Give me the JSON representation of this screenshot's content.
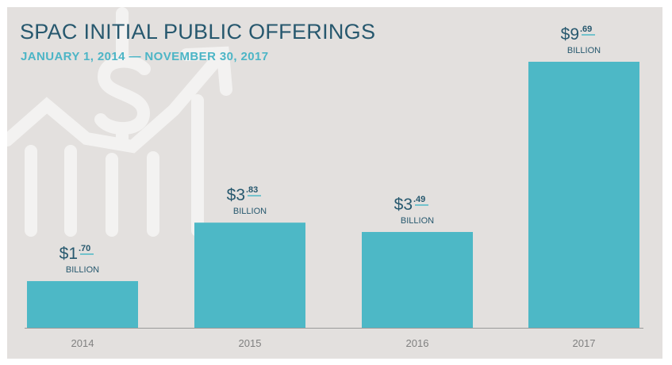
{
  "chart_data": {
    "type": "bar",
    "title": "SPAC INITIAL PUBLIC OFFERINGS",
    "subtitle": "JANUARY 1, 2014 — NOVEMBER 30, 2017",
    "categories": [
      "2014",
      "2015",
      "2016",
      "2017"
    ],
    "values": [
      1.7,
      3.83,
      3.49,
      9.69
    ],
    "value_labels": [
      {
        "dollars": "$1",
        "cents": ".70",
        "unit": "BILLION"
      },
      {
        "dollars": "$3",
        "cents": ".83",
        "unit": "BILLION"
      },
      {
        "dollars": "$3",
        "cents": ".49",
        "unit": "BILLION"
      },
      {
        "dollars": "$9",
        "cents": ".69",
        "unit": "BILLION"
      }
    ],
    "ylim": [
      0,
      9.69
    ],
    "grid": false,
    "legend": "none",
    "colors": {
      "bar": "#4db8c6",
      "background": "#e3e0de",
      "title": "#27586e",
      "subtitle": "#4cb5c6",
      "label": "#27586e",
      "tick": "#808080",
      "axis": "#9a9a9a",
      "decor": "#f3f2f1"
    },
    "decor_icon": "dollar-growth-chart-icon"
  }
}
